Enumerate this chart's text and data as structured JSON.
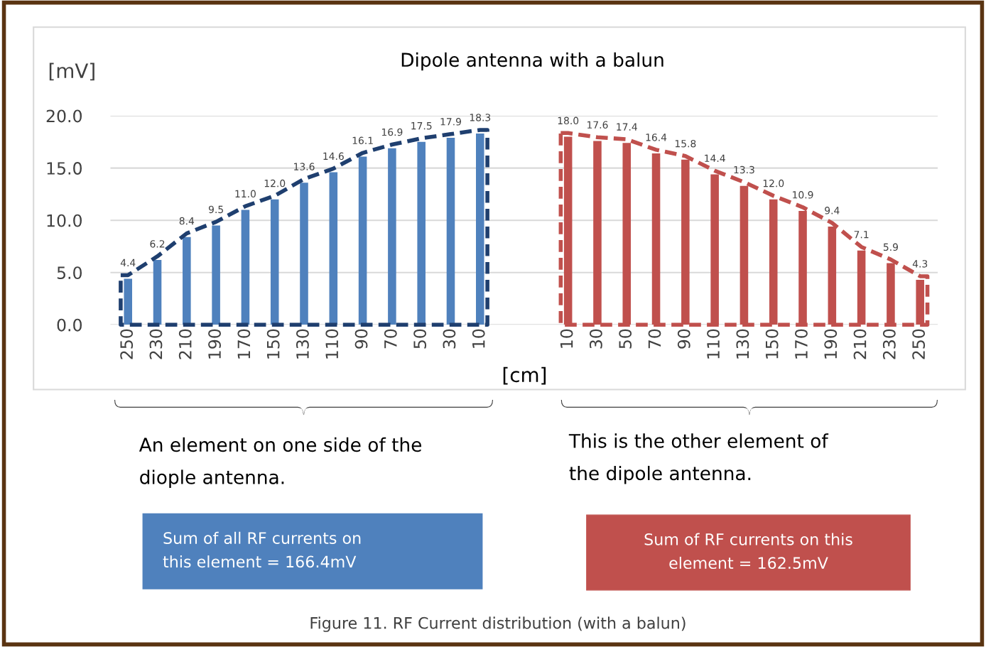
{
  "chart_data": {
    "type": "bar",
    "title": "Dipole antenna with a balun",
    "ylabel": "[mV]",
    "xlabel": "[cm]",
    "categories": [
      "250",
      "230",
      "210",
      "190",
      "170",
      "150",
      "130",
      "110",
      "90",
      "70",
      "50",
      "30",
      "10",
      null,
      null,
      "10",
      "30",
      "50",
      "70",
      "90",
      "110",
      "130",
      "150",
      "170",
      "190",
      "210",
      "230",
      "250"
    ],
    "series": [
      {
        "color": "#4f81bd",
        "values": [
          4.4,
          6.2,
          8.4,
          9.5,
          11.0,
          12.0,
          13.6,
          14.6,
          16.1,
          16.9,
          17.5,
          17.9,
          18.3,
          null,
          null,
          null,
          null,
          null,
          null,
          null,
          null,
          null,
          null,
          null,
          null,
          null,
          null,
          null
        ],
        "value_labels": [
          "4.4",
          "6.2",
          "8.4",
          "9.5",
          "11.0",
          "12.0",
          "13.6",
          "14.6",
          "16.1",
          "16.9",
          "17.5",
          "17.9",
          "18.3",
          null,
          null,
          null,
          null,
          null,
          null,
          null,
          null,
          null,
          null,
          null,
          null,
          null,
          null,
          null
        ]
      },
      {
        "color": "#c0504d",
        "values": [
          null,
          null,
          null,
          null,
          null,
          null,
          null,
          null,
          null,
          null,
          null,
          null,
          null,
          null,
          null,
          18.0,
          17.6,
          17.4,
          16.4,
          15.8,
          14.4,
          13.3,
          12.0,
          10.9,
          9.4,
          7.1,
          5.9,
          4.3
        ],
        "value_labels": [
          null,
          null,
          null,
          null,
          null,
          null,
          null,
          null,
          null,
          null,
          null,
          null,
          null,
          null,
          null,
          "18.0",
          "17.6",
          "17.4",
          "16.4",
          "15.8",
          "14.4",
          "13.3",
          "12.0",
          "10.9",
          "9.4",
          "7.1",
          "5.9",
          "4.3"
        ]
      }
    ],
    "ylim": [
      0,
      20
    ],
    "yticks": [
      {
        "value": 0,
        "label": "0.0"
      },
      {
        "value": 5,
        "label": "5.0"
      },
      {
        "value": 10,
        "label": "10.0"
      },
      {
        "value": 15,
        "label": "15.0"
      },
      {
        "value": 20,
        "label": "20.0"
      }
    ],
    "grid": "y",
    "annotations": [
      "An element on one side of the diople antenna.",
      "This is the other element of the dipole antenna.",
      "Sum of all RF currents on this element = 166.4mV",
      "Sum of RF currents on this element = 162.5mV",
      "Figure 11. RF Current distribution (with a balun)"
    ]
  }
}
